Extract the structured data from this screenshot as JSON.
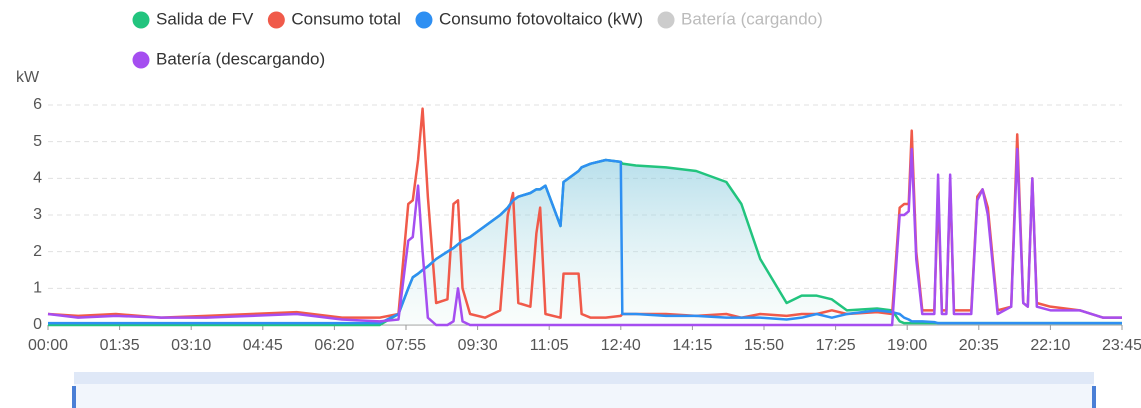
{
  "chart_data": {
    "type": "line",
    "y_label": "kW",
    "ylim": [
      0,
      6
    ],
    "yticks": [
      0,
      1,
      2,
      3,
      4,
      5,
      6
    ],
    "grid": true,
    "area_under": "Salida de FV",
    "xlim": [
      0,
      1425
    ],
    "xticks": [
      {
        "value": 0,
        "label": "00:00"
      },
      {
        "value": 95,
        "label": "01:35"
      },
      {
        "value": 190,
        "label": "03:10"
      },
      {
        "value": 285,
        "label": "04:45"
      },
      {
        "value": 380,
        "label": "06:20"
      },
      {
        "value": 475,
        "label": "07:55"
      },
      {
        "value": 570,
        "label": "09:30"
      },
      {
        "value": 665,
        "label": "11:05"
      },
      {
        "value": 760,
        "label": "12:40"
      },
      {
        "value": 855,
        "label": "14:15"
      },
      {
        "value": 950,
        "label": "15:50"
      },
      {
        "value": 1045,
        "label": "17:25"
      },
      {
        "value": 1140,
        "label": "19:00"
      },
      {
        "value": 1235,
        "label": "20:35"
      },
      {
        "value": 1330,
        "label": "22:10"
      },
      {
        "value": 1425,
        "label": "23:45"
      }
    ],
    "x": [
      0,
      40,
      90,
      150,
      210,
      270,
      330,
      390,
      440,
      465,
      478,
      484,
      491,
      497,
      504,
      515,
      530,
      538,
      544,
      550,
      560,
      580,
      600,
      610,
      617,
      624,
      640,
      648,
      653,
      660,
      680,
      684,
      704,
      708,
      720,
      740,
      760,
      762,
      780,
      820,
      860,
      900,
      920,
      945,
      980,
      1000,
      1020,
      1040,
      1060,
      1100,
      1120,
      1130,
      1136,
      1142,
      1146,
      1152,
      1160,
      1176,
      1181,
      1186,
      1192,
      1197,
      1202,
      1225,
      1233,
      1240,
      1247,
      1260,
      1278,
      1286,
      1294,
      1300,
      1306,
      1312,
      1330,
      1369,
      1400,
      1425
    ],
    "series": [
      {
        "name": "Salida de FV",
        "color": "#22c47e",
        "values": [
          0,
          0,
          0,
          0,
          0,
          0,
          0,
          0,
          0,
          0.3,
          1.0,
          1.3,
          1.4,
          1.5,
          1.6,
          1.8,
          2.0,
          2.1,
          2.2,
          2.3,
          2.4,
          2.7,
          3.0,
          3.2,
          3.4,
          3.5,
          3.6,
          3.7,
          3.7,
          3.8,
          2.7,
          3.9,
          4.2,
          4.3,
          4.4,
          4.5,
          4.45,
          4.4,
          4.35,
          4.3,
          4.2,
          3.9,
          3.3,
          1.8,
          0.6,
          0.8,
          0.8,
          0.7,
          0.4,
          0.45,
          0.4,
          0.1,
          0.05,
          0.05,
          0.05,
          0.05,
          0.05,
          0.05,
          0.05,
          0.05,
          0.05,
          0.05,
          0.05,
          0.05,
          0.05,
          0.05,
          0.05,
          0.05,
          0.05,
          0.05,
          0.05,
          0.05,
          0.05,
          0.05,
          0.05,
          0.05,
          0.05,
          0.05
        ]
      },
      {
        "name": "Consumo total",
        "color": "#f05a4a",
        "values": [
          0.3,
          0.25,
          0.3,
          0.2,
          0.25,
          0.3,
          0.35,
          0.2,
          0.2,
          0.3,
          3.3,
          3.4,
          4.5,
          5.9,
          3.5,
          0.6,
          0.7,
          3.3,
          3.4,
          1.0,
          0.3,
          0.2,
          0.4,
          3.0,
          3.6,
          0.6,
          0.5,
          2.5,
          3.2,
          0.3,
          0.2,
          1.4,
          1.4,
          0.3,
          0.2,
          0.2,
          0.25,
          0.3,
          0.3,
          0.3,
          0.25,
          0.3,
          0.2,
          0.3,
          0.25,
          0.3,
          0.3,
          0.4,
          0.3,
          0.35,
          0.3,
          3.2,
          3.3,
          3.3,
          5.3,
          2.0,
          0.4,
          0.4,
          3.6,
          0.4,
          0.4,
          3.9,
          0.4,
          0.4,
          3.5,
          3.7,
          3.2,
          0.4,
          0.5,
          5.2,
          0.6,
          0.5,
          4.0,
          0.6,
          0.5,
          0.4,
          0.2,
          0.2
        ]
      },
      {
        "name": "Consumo fotovoltaico (kW)",
        "color": "#2e8ff2",
        "values": [
          0.05,
          0.05,
          0.05,
          0.05,
          0.05,
          0.05,
          0.05,
          0.05,
          0.05,
          0.3,
          1.0,
          1.3,
          1.4,
          1.5,
          1.6,
          1.8,
          2.0,
          2.1,
          2.2,
          2.3,
          2.4,
          2.7,
          3.0,
          3.2,
          3.4,
          3.5,
          3.6,
          3.7,
          3.7,
          3.8,
          2.7,
          3.9,
          4.2,
          4.3,
          4.4,
          4.5,
          4.45,
          0.3,
          0.3,
          0.25,
          0.25,
          0.2,
          0.2,
          0.2,
          0.15,
          0.2,
          0.3,
          0.2,
          0.3,
          0.4,
          0.35,
          0.3,
          0.2,
          0.15,
          0.1,
          0.1,
          0.1,
          0.08,
          0.05,
          0.05,
          0.05,
          0.05,
          0.05,
          0.05,
          0.05,
          0.05,
          0.05,
          0.05,
          0.05,
          0.05,
          0.05,
          0.05,
          0.05,
          0.05,
          0.05,
          0.05,
          0.05,
          0.05
        ]
      },
      {
        "name": "Batería (cargando)",
        "color": "#cccccc",
        "visible": false
      },
      {
        "name": "Batería (descargando)",
        "color": "#a54ef0",
        "values": [
          0.3,
          0.2,
          0.25,
          0.2,
          0.2,
          0.25,
          0.3,
          0.15,
          0.1,
          0.15,
          2.3,
          2.4,
          3.8,
          2.0,
          0.2,
          0,
          0,
          0.1,
          1.0,
          0.1,
          0,
          0,
          0,
          0,
          0,
          0,
          0,
          0,
          0,
          0,
          0,
          0,
          0,
          0,
          0,
          0,
          0,
          0,
          0,
          0,
          0,
          0,
          0,
          0,
          0,
          0,
          0,
          0,
          0,
          0,
          0,
          3.0,
          3.0,
          3.1,
          4.8,
          1.8,
          0.3,
          0.3,
          4.1,
          0.3,
          0.3,
          4.1,
          0.3,
          0.3,
          3.4,
          3.7,
          3.0,
          0.3,
          0.5,
          4.8,
          0.6,
          0.5,
          4.0,
          0.5,
          0.4,
          0.4,
          0.2,
          0.2
        ]
      }
    ]
  }
}
